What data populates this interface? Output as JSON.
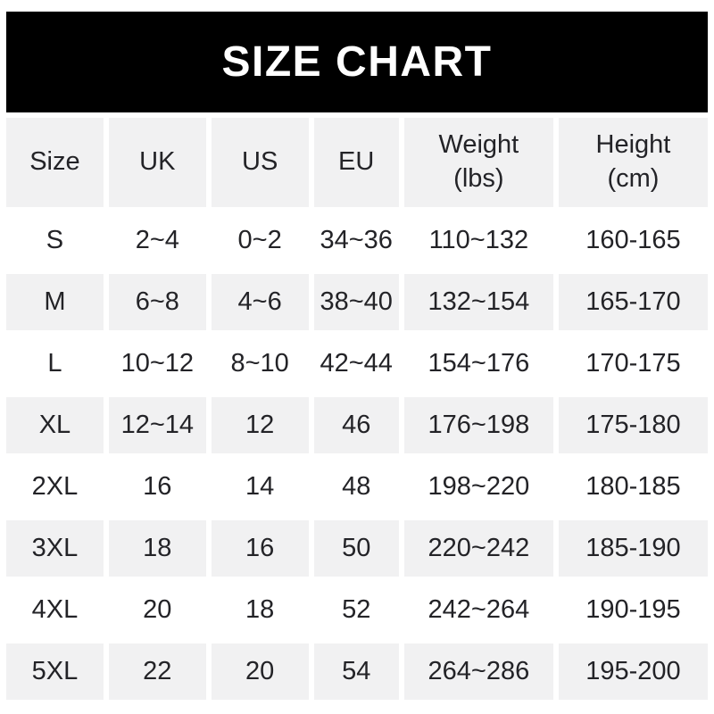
{
  "banner": {
    "title": "SIZE CHART",
    "bg_color": "#000000",
    "text_color": "#ffffff"
  },
  "table": {
    "row_alt_bg": "#f1f1f2",
    "text_color": "#232327",
    "headers": [
      "Size",
      "UK",
      "US",
      "EU",
      "Weight\n(lbs)",
      "Height\n(cm)"
    ],
    "rows": [
      {
        "size": "S",
        "uk": "2~4",
        "us": "0~2",
        "eu": "34~36",
        "weight": "110~132",
        "height": "160-165"
      },
      {
        "size": "M",
        "uk": "6~8",
        "us": "4~6",
        "eu": "38~40",
        "weight": "132~154",
        "height": "165-170"
      },
      {
        "size": "L",
        "uk": "10~12",
        "us": "8~10",
        "eu": "42~44",
        "weight": "154~176",
        "height": "170-175"
      },
      {
        "size": "XL",
        "uk": "12~14",
        "us": "12",
        "eu": "46",
        "weight": "176~198",
        "height": "175-180"
      },
      {
        "size": "2XL",
        "uk": "16",
        "us": "14",
        "eu": "48",
        "weight": "198~220",
        "height": "180-185"
      },
      {
        "size": "3XL",
        "uk": "18",
        "us": "16",
        "eu": "50",
        "weight": "220~242",
        "height": "185-190"
      },
      {
        "size": "4XL",
        "uk": "20",
        "us": "18",
        "eu": "52",
        "weight": "242~264",
        "height": "190-195"
      },
      {
        "size": "5XL",
        "uk": "22",
        "us": "20",
        "eu": "54",
        "weight": "264~286",
        "height": "195-200"
      }
    ]
  }
}
